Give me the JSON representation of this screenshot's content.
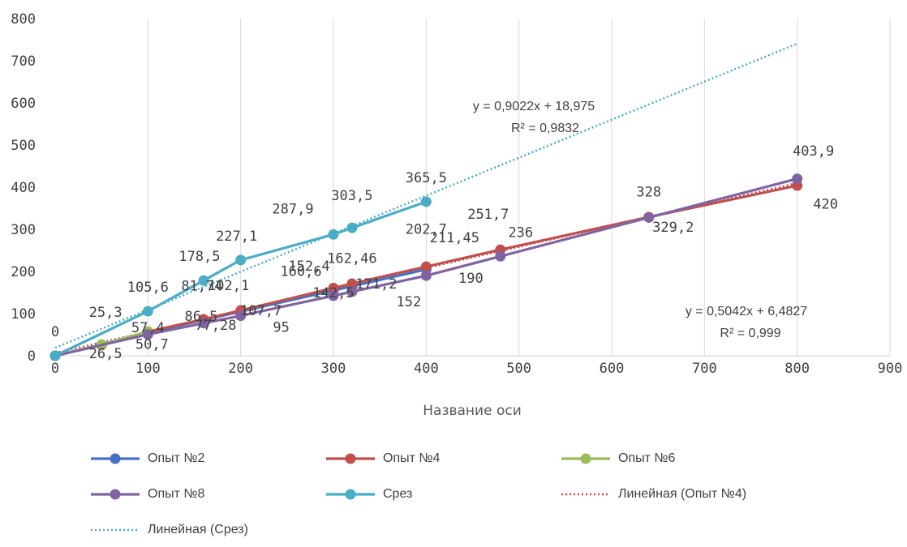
{
  "chart_data": {
    "type": "scatter",
    "xlabel": "Название оси",
    "ylabel": "",
    "xlim": [
      0,
      900
    ],
    "ylim": [
      0,
      800
    ],
    "x_ticks": [
      0,
      100,
      200,
      300,
      400,
      500,
      600,
      700,
      800,
      900
    ],
    "y_ticks": [
      0,
      100,
      200,
      300,
      400,
      500,
      600,
      700,
      800
    ],
    "grid": "vertical",
    "legend_position": "bottom",
    "series": [
      {
        "name": "Опыт №2",
        "color": "#4472C4",
        "style": "line-markers",
        "x": [
          0,
          50,
          100,
          160,
          200,
          300,
          320,
          400
        ],
        "y": [
          0,
          25,
          55,
          85,
          105,
          155,
          165,
          205
        ]
      },
      {
        "name": "Опыт №4",
        "color": "#C0504D",
        "style": "line-markers",
        "x": [
          0,
          50,
          100,
          160,
          200,
          300,
          320,
          400,
          480,
          640,
          800
        ],
        "y": [
          0,
          25.3,
          57.4,
          86.5,
          107.7,
          160.6,
          171.2,
          211.45,
          251.7,
          329.2,
          403.9
        ]
      },
      {
        "name": "Опыт №6",
        "color": "#9BBB59",
        "style": "line-markers",
        "x": [
          0,
          50,
          100
        ],
        "y": [
          0,
          26.5,
          57.4
        ]
      },
      {
        "name": "Опыт №8",
        "color": "#8064A2",
        "style": "line-markers",
        "x": [
          0,
          100,
          160,
          200,
          300,
          320,
          400,
          480,
          640,
          800
        ],
        "y": [
          0,
          50.7,
          77.28,
          95,
          142.5,
          152,
          190,
          236,
          328,
          420
        ]
      },
      {
        "name": "Срез",
        "color": "#4BACC6",
        "style": "line-markers",
        "x": [
          0,
          100,
          160,
          200,
          300,
          320,
          400
        ],
        "y": [
          0,
          105.6,
          178.5,
          227.1,
          287.9,
          303.5,
          365.5
        ]
      },
      {
        "name": "Линейная (Опыт №4)",
        "color": "#C0504D",
        "style": "dotted",
        "x": [
          0,
          800
        ],
        "y": [
          6.4827,
          409.8427
        ]
      },
      {
        "name": "Линейная (Срез)",
        "color": "#4BACC6",
        "style": "dotted",
        "x": [
          0,
          800
        ],
        "y": [
          18.975,
          740.735
        ]
      }
    ],
    "data_labels": [
      {
        "text": "0",
        "x": 0,
        "y": 0
      },
      {
        "text": "25,3",
        "x": 50,
        "y": 25.3
      },
      {
        "text": "26,5",
        "x": 50,
        "y": 26.5
      },
      {
        "text": "57,4",
        "x": 100,
        "y": 57.4
      },
      {
        "text": "50,7",
        "x": 100,
        "y": 50.7
      },
      {
        "text": "105,6",
        "x": 100,
        "y": 105.6
      },
      {
        "text": "86,5",
        "x": 160,
        "y": 86.5
      },
      {
        "text": "81,74",
        "x": 160,
        "y": 81.74
      },
      {
        "text": "77,28",
        "x": 160,
        "y": 77.28
      },
      {
        "text": "178,5",
        "x": 160,
        "y": 178.5
      },
      {
        "text": "102,1",
        "x": 200,
        "y": 102.1
      },
      {
        "text": "107,7",
        "x": 200,
        "y": 107.7
      },
      {
        "text": "95",
        "x": 200,
        "y": 95
      },
      {
        "text": "227,1",
        "x": 200,
        "y": 227.1
      },
      {
        "text": "152,4",
        "x": 300,
        "y": 152.4
      },
      {
        "text": "160,6",
        "x": 300,
        "y": 160.6
      },
      {
        "text": "142,5",
        "x": 300,
        "y": 142.5
      },
      {
        "text": "287,9",
        "x": 300,
        "y": 287.9
      },
      {
        "text": "162,46",
        "x": 320,
        "y": 162.46
      },
      {
        "text": "171,2",
        "x": 320,
        "y": 171.2
      },
      {
        "text": "152",
        "x": 320,
        "y": 152
      },
      {
        "text": "303,5",
        "x": 320,
        "y": 303.5
      },
      {
        "text": "202,7",
        "x": 400,
        "y": 202.7
      },
      {
        "text": "211,45",
        "x": 400,
        "y": 211.45
      },
      {
        "text": "190",
        "x": 400,
        "y": 190
      },
      {
        "text": "365,5",
        "x": 400,
        "y": 365.5
      },
      {
        "text": "251,7",
        "x": 480,
        "y": 251.7
      },
      {
        "text": "236",
        "x": 480,
        "y": 236
      },
      {
        "text": "328",
        "x": 640,
        "y": 328
      },
      {
        "text": "329,2",
        "x": 640,
        "y": 329.2
      },
      {
        "text": "403,9",
        "x": 800,
        "y": 403.9
      },
      {
        "text": "420",
        "x": 800,
        "y": 420
      }
    ],
    "trendline_equations": [
      {
        "series": "Линейная (Срез)",
        "equation": "y = 0,9022x + 18,975",
        "r2": "R² = 0,9832"
      },
      {
        "series": "Линейная (Опыт №4)",
        "equation": "y = 0,5042x + 6,4827",
        "r2": "R² = 0,999"
      }
    ]
  }
}
